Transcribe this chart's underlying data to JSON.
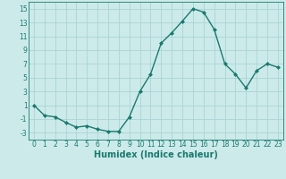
{
  "x": [
    0,
    1,
    2,
    3,
    4,
    5,
    6,
    7,
    8,
    9,
    10,
    11,
    12,
    13,
    14,
    15,
    16,
    17,
    18,
    19,
    20,
    21,
    22,
    23
  ],
  "y": [
    1,
    -0.5,
    -0.7,
    -1.5,
    -2.2,
    -2.0,
    -2.5,
    -2.8,
    -2.8,
    -0.7,
    3.0,
    5.5,
    10.0,
    11.5,
    13.2,
    15.0,
    14.5,
    12.0,
    7.0,
    5.5,
    3.5,
    6.0,
    7.0,
    6.5
  ],
  "line_color": "#1a7a6e",
  "marker": "D",
  "marker_size": 2.0,
  "background_color": "#cceaea",
  "grid_color": "#aad4d4",
  "xlabel": "Humidex (Indice chaleur)",
  "xlim": [
    -0.5,
    23.5
  ],
  "ylim": [
    -4,
    16
  ],
  "yticks": [
    -3,
    -1,
    1,
    3,
    5,
    7,
    9,
    11,
    13,
    15
  ],
  "xticks": [
    0,
    1,
    2,
    3,
    4,
    5,
    6,
    7,
    8,
    9,
    10,
    11,
    12,
    13,
    14,
    15,
    16,
    17,
    18,
    19,
    20,
    21,
    22,
    23
  ],
  "tick_label_fontsize": 5.5,
  "xlabel_fontsize": 7.0,
  "line_width": 1.0
}
